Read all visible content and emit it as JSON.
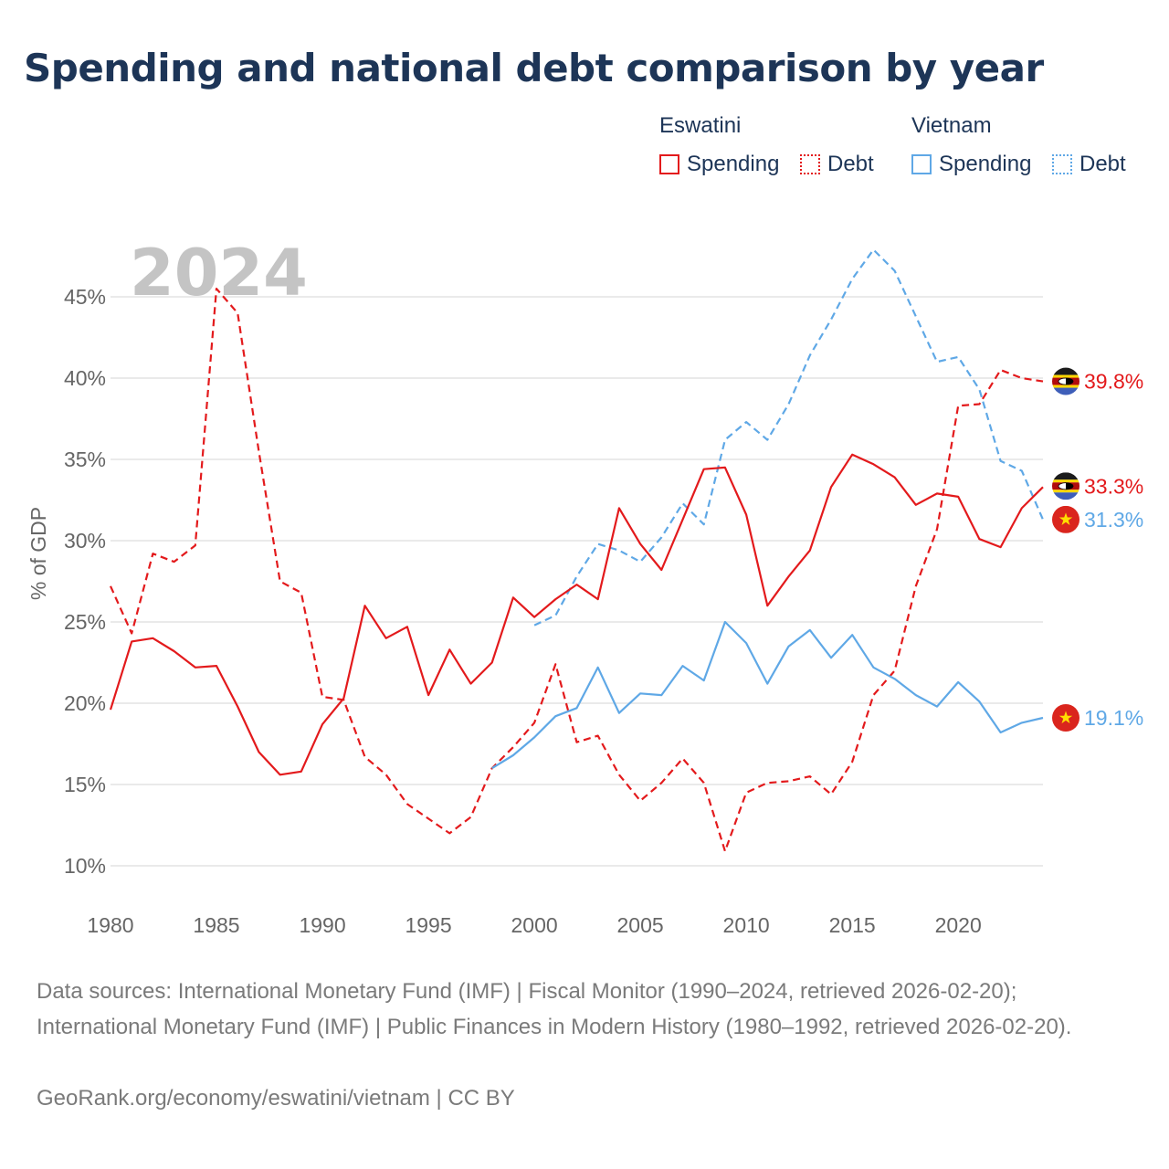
{
  "title": "Spending and national debt comparison by year",
  "legend": {
    "groups": [
      {
        "name": "Eswatini",
        "color": "#e31a1c",
        "items": [
          {
            "label": "Spending",
            "style": "solid"
          },
          {
            "label": "Debt",
            "style": "dotted"
          }
        ]
      },
      {
        "name": "Vietnam",
        "color": "#5fa8e6",
        "items": [
          {
            "label": "Spending",
            "style": "solid"
          },
          {
            "label": "Debt",
            "style": "dotted"
          }
        ]
      }
    ]
  },
  "chart_data": {
    "type": "line",
    "year_watermark": "2024",
    "ylabel": "% of GDP",
    "xlabel": "",
    "xlim": [
      1980,
      2024
    ],
    "ylim": [
      10,
      47
    ],
    "x_ticks": [
      "1980",
      "1985",
      "1990",
      "1995",
      "2000",
      "2005",
      "2010",
      "2015",
      "2020"
    ],
    "y_ticks": [
      "10%",
      "15%",
      "20%",
      "25%",
      "30%",
      "35%",
      "40%",
      "45%"
    ],
    "series": [
      {
        "name": "Eswatini Debt",
        "country": "Eswatini",
        "kind": "Debt",
        "color": "#e31a1c",
        "dash": "dashed",
        "end_label": "39.8%",
        "flag": "eswatini",
        "x": [
          1980,
          1981,
          1982,
          1983,
          1984,
          1985,
          1986,
          1987,
          1988,
          1989,
          1990,
          1991,
          1992,
          1993,
          1994,
          1995,
          1996,
          1997,
          1998,
          1999,
          2000,
          2001,
          2002,
          2003,
          2004,
          2005,
          2006,
          2007,
          2008,
          2009,
          2010,
          2011,
          2012,
          2013,
          2014,
          2015,
          2016,
          2017,
          2018,
          2019,
          2020,
          2021,
          2022,
          2023,
          2024
        ],
        "values": [
          27.2,
          24.3,
          29.2,
          28.7,
          29.7,
          45.5,
          44.0,
          35.5,
          27.5,
          26.8,
          20.4,
          20.2,
          16.7,
          15.6,
          13.8,
          12.9,
          12.0,
          13.0,
          16.0,
          17.3,
          18.8,
          22.4,
          17.6,
          18.0,
          15.6,
          14.0,
          15.1,
          16.6,
          15.1,
          10.9,
          14.5,
          15.1,
          15.2,
          15.5,
          14.4,
          16.4,
          20.5,
          22.0,
          27.2,
          30.7,
          38.3,
          38.4,
          40.5,
          40.0,
          39.8
        ]
      },
      {
        "name": "Vietnam Debt",
        "country": "Vietnam",
        "kind": "Debt",
        "color": "#5fa8e6",
        "dash": "dashed",
        "end_label": "31.3%",
        "flag": "vietnam",
        "x": [
          2000,
          2001,
          2002,
          2003,
          2004,
          2005,
          2006,
          2007,
          2008,
          2009,
          2010,
          2011,
          2012,
          2013,
          2014,
          2015,
          2016,
          2017,
          2018,
          2019,
          2020,
          2021,
          2022,
          2023,
          2024
        ],
        "values": [
          24.8,
          25.4,
          27.8,
          29.8,
          29.4,
          28.7,
          30.2,
          32.3,
          31.0,
          36.2,
          37.3,
          36.2,
          38.4,
          41.4,
          43.6,
          46.1,
          47.9,
          46.6,
          43.8,
          41.0,
          41.3,
          39.3,
          34.9,
          34.3,
          31.3
        ]
      },
      {
        "name": "Eswatini Spending",
        "country": "Eswatini",
        "kind": "Spending",
        "color": "#e31a1c",
        "dash": "solid",
        "end_label": "33.3%",
        "flag": "eswatini",
        "x": [
          1980,
          1981,
          1982,
          1983,
          1984,
          1985,
          1986,
          1987,
          1988,
          1989,
          1990,
          1991,
          1992,
          1993,
          1994,
          1995,
          1996,
          1997,
          1998,
          1999,
          2000,
          2001,
          2002,
          2003,
          2004,
          2005,
          2006,
          2007,
          2008,
          2009,
          2010,
          2011,
          2012,
          2013,
          2014,
          2015,
          2016,
          2017,
          2018,
          2019,
          2020,
          2021,
          2022,
          2023,
          2024
        ],
        "values": [
          19.6,
          23.8,
          24.0,
          23.2,
          22.2,
          22.3,
          19.8,
          17.0,
          15.6,
          15.8,
          18.7,
          20.3,
          26.0,
          24.0,
          24.7,
          20.5,
          23.3,
          21.2,
          22.5,
          26.5,
          25.3,
          26.4,
          27.3,
          26.4,
          32.0,
          29.8,
          28.2,
          31.3,
          34.4,
          34.5,
          31.6,
          26.0,
          27.8,
          29.4,
          33.3,
          35.3,
          34.7,
          33.9,
          32.2,
          32.9,
          32.7,
          30.1,
          29.6,
          32.0,
          33.3
        ]
      },
      {
        "name": "Vietnam Spending",
        "country": "Vietnam",
        "kind": "Spending",
        "color": "#5fa8e6",
        "dash": "solid",
        "end_label": "19.1%",
        "flag": "vietnam",
        "x": [
          1998,
          1999,
          2000,
          2001,
          2002,
          2003,
          2004,
          2005,
          2006,
          2007,
          2008,
          2009,
          2010,
          2011,
          2012,
          2013,
          2014,
          2015,
          2016,
          2017,
          2018,
          2019,
          2020,
          2021,
          2022,
          2023,
          2024
        ],
        "values": [
          16.0,
          16.8,
          17.9,
          19.2,
          19.7,
          22.2,
          19.4,
          20.6,
          20.5,
          22.3,
          21.4,
          25.0,
          23.7,
          21.2,
          23.5,
          24.5,
          22.8,
          24.2,
          22.2,
          21.5,
          20.5,
          19.8,
          21.3,
          20.1,
          18.2,
          18.8,
          19.1
        ]
      }
    ]
  },
  "sources": "Data sources: International Monetary Fund (IMF) | Fiscal Monitor (1990–2024, retrieved 2026-02-20); International Monetary Fund (IMF) | Public Finances in Modern History (1980–1992, retrieved 2026-02-20).",
  "credit": "GeoRank.org/economy/eswatini/vietnam | CC BY"
}
